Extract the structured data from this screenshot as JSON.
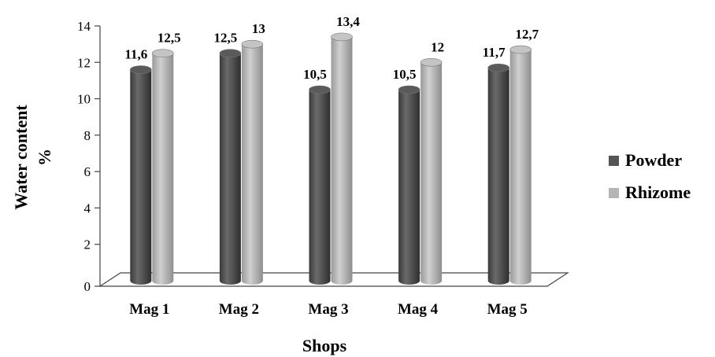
{
  "chart_data": {
    "type": "bar",
    "categories": [
      "Mag 1",
      "Mag 2",
      "Mag 3",
      "Mag 4",
      "Mag 5"
    ],
    "series": [
      {
        "name": "Powder",
        "values": [
          11.6,
          12.5,
          10.5,
          10.5,
          11.7
        ],
        "labels": [
          "11,6",
          "12,5",
          "10,5",
          "10,5",
          "11,7"
        ],
        "color": "#555555"
      },
      {
        "name": "Rhizome",
        "values": [
          12.5,
          13,
          13.4,
          12,
          12.7
        ],
        "labels": [
          "12,5",
          "13",
          "13,4",
          "12",
          "12,7"
        ],
        "color": "#b5b5b5"
      }
    ],
    "xlabel": "Shops",
    "ylabel_line1": "Water content",
    "ylabel_line2": "%",
    "ylim": [
      0,
      14
    ],
    "yticks": [
      0,
      2,
      4,
      6,
      8,
      10,
      12,
      14
    ],
    "legend_position": "right",
    "style": "3d-cylinder",
    "grid": false
  }
}
